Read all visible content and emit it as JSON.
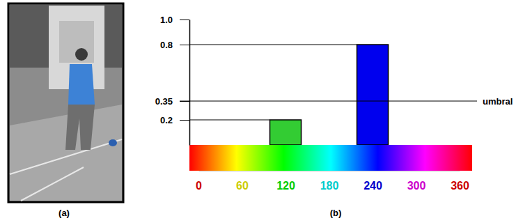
{
  "panel_labels": [
    "(a)",
    "(b)"
  ],
  "chart_data": {
    "type": "bar",
    "x": [
      120,
      240
    ],
    "values": [
      0.2,
      0.8
    ],
    "colors": [
      "#33cc33",
      "#0000ee"
    ],
    "xlim": [
      0,
      360
    ],
    "xticks": [
      0,
      60,
      120,
      180,
      240,
      300,
      360
    ],
    "ylim": [
      0,
      1
    ],
    "yticks": [
      {
        "value": 1,
        "label": "1.0"
      },
      0.8,
      0.35,
      0.2
    ],
    "annotations": [
      {
        "y": 0.35,
        "text": "umbral"
      }
    ]
  }
}
